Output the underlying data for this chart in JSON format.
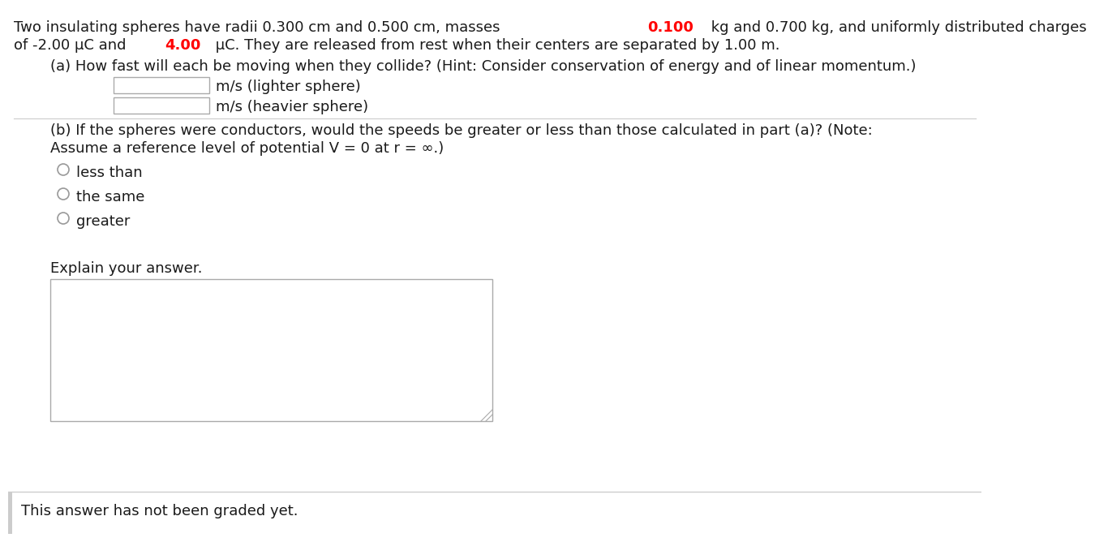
{
  "bg_color": "#ffffff",
  "text_color": "#1a1a1a",
  "red_color": "#ff0000",
  "gray_color": "#999999",
  "light_gray": "#cccccc",
  "border_gray": "#aaaaaa",
  "line1_part1": "Two insulating spheres have radii 0.300 cm and 0.500 cm, masses ",
  "line1_red": "0.100",
  "line1_part2": " kg and 0.700 kg, and uniformly distributed charges",
  "line2_part1": "of -2.00 μC and ",
  "line2_red": "4.00",
  "line2_part2": " μC. They are released from rest when their centers are separated by 1.00 m.",
  "part_a_text": "(a) How fast will each be moving when they collide? (Hint: Consider conservation of energy and of linear momentum.)",
  "input_label1": "m/s (lighter sphere)",
  "input_label2": "m/s (heavier sphere)",
  "part_b_line1": "(b) If the spheres were conductors, would the speeds be greater or less than those calculated in part (a)? (Note:",
  "part_b_line2": "Assume a reference level of potential V = 0 at r = ∞.)",
  "radio1": "less than",
  "radio2": "the same",
  "radio3": "greater",
  "explain_label": "Explain your answer.",
  "graded_note": "This answer has not been graded yet.",
  "font_size": 13.0,
  "dpi": 100
}
